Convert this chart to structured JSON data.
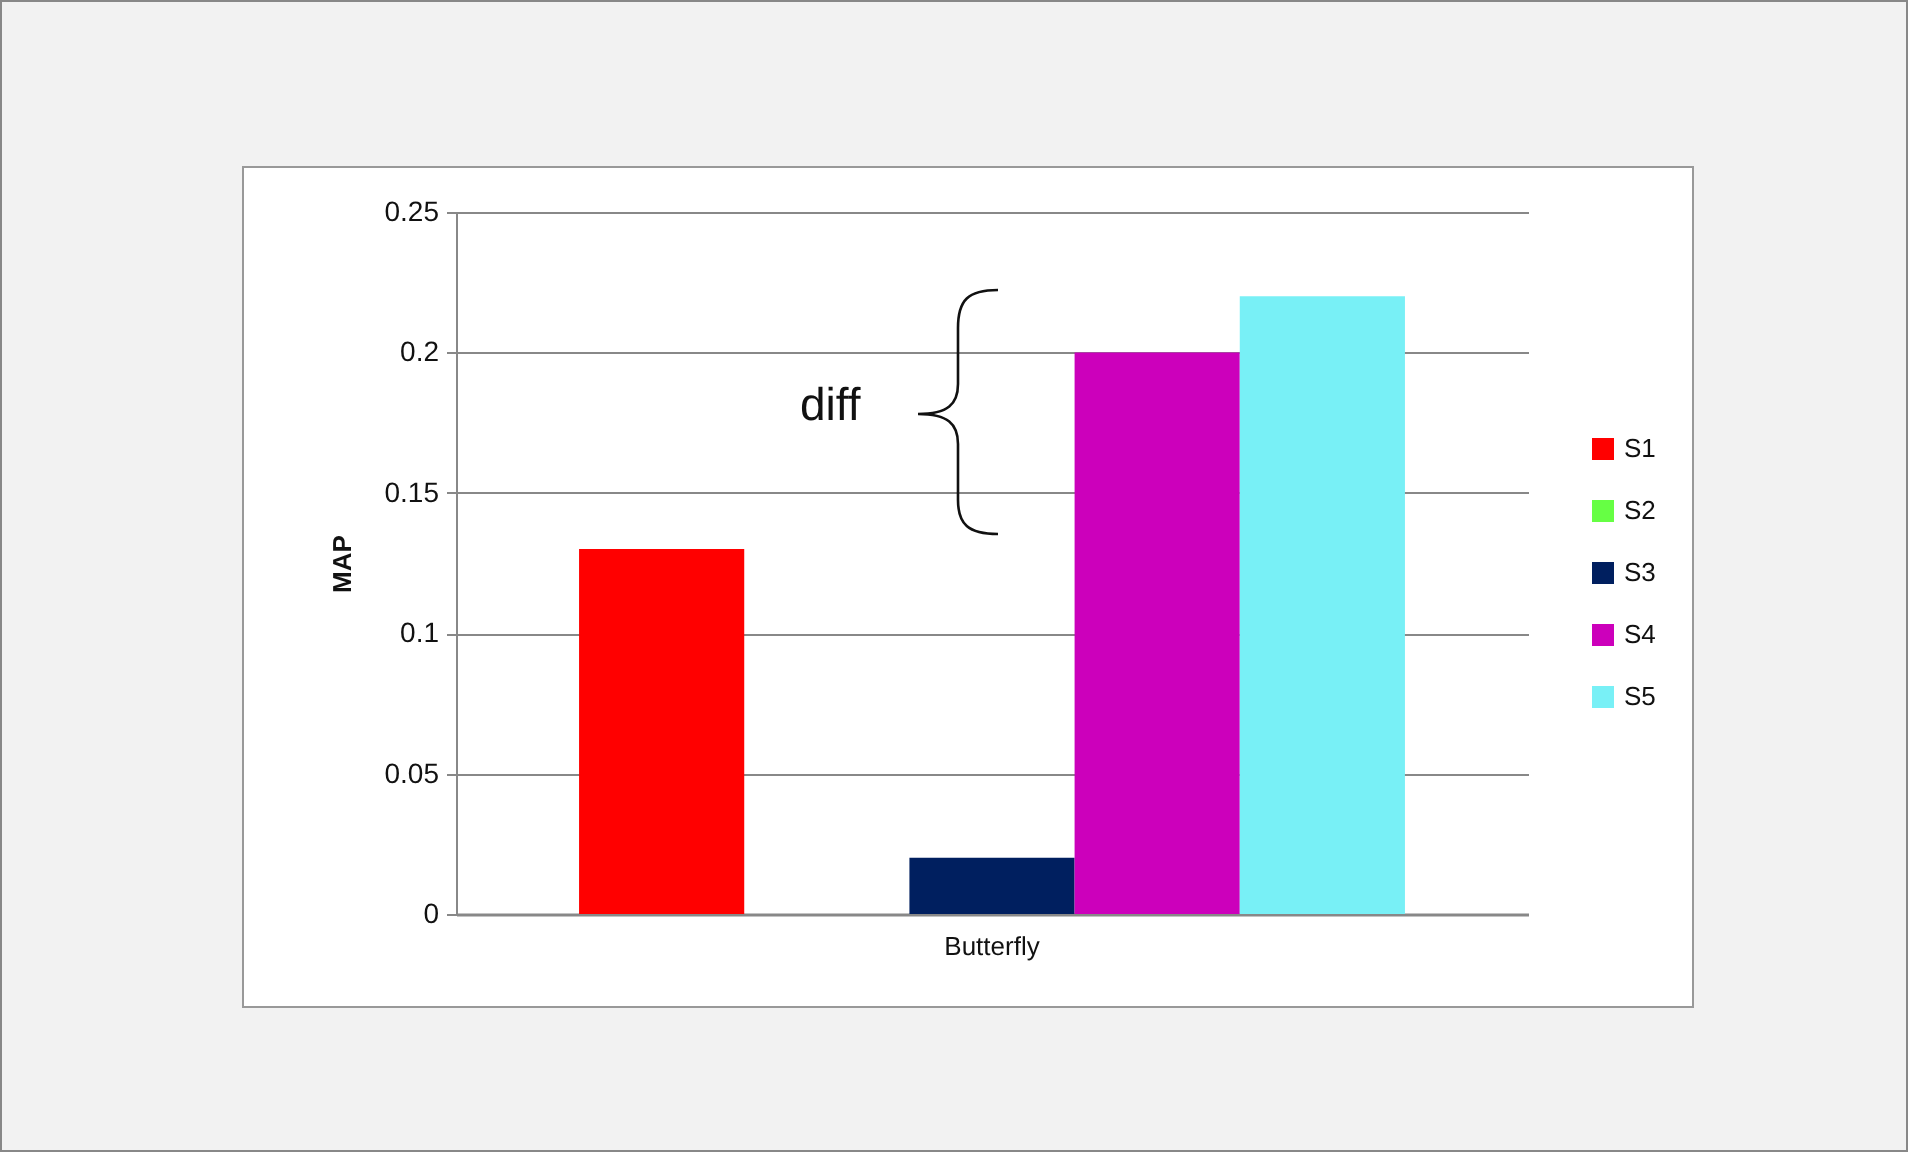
{
  "chart_data": {
    "type": "bar",
    "ylabel": "MAP",
    "categories": [
      "Butterfly"
    ],
    "series": [
      {
        "name": "S1",
        "color": "#ff0000",
        "values": [
          0.13
        ]
      },
      {
        "name": "S2",
        "color": "#66ff44",
        "values": [
          0
        ]
      },
      {
        "name": "S3",
        "color": "#001f5f",
        "values": [
          0.02
        ]
      },
      {
        "name": "S4",
        "color": "#cc00bb",
        "values": [
          0.2
        ]
      },
      {
        "name": "S5",
        "color": "#78f0f6",
        "values": [
          0.22
        ]
      }
    ],
    "ylim": [
      0,
      0.25
    ],
    "yticks": [
      0,
      0.05,
      0.1,
      0.15,
      0.2,
      0.25
    ],
    "grid": "y",
    "legend": "right",
    "annotations": [
      "diff"
    ]
  }
}
